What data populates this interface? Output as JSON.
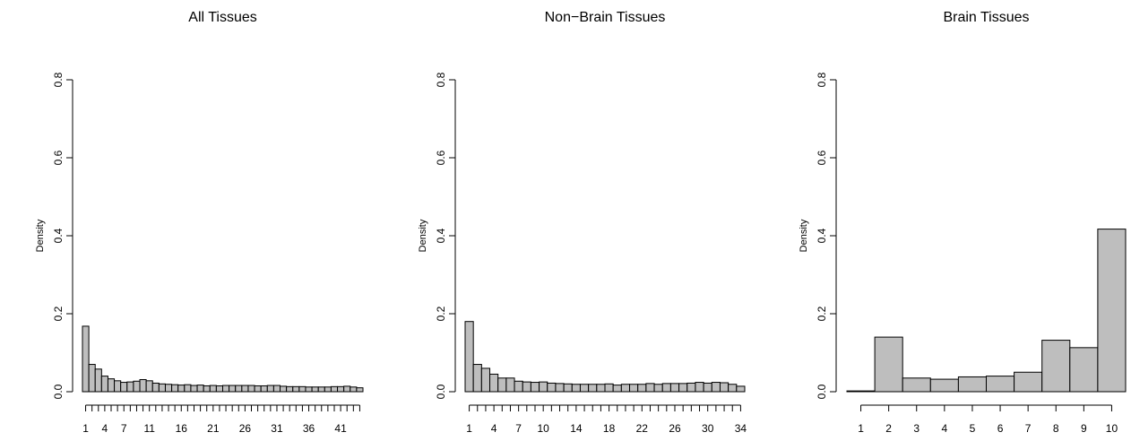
{
  "chart_data": [
    {
      "type": "bar",
      "title": "All Tissues",
      "ylabel": "Density",
      "color": "#bebebe",
      "categories": [
        1,
        null,
        null,
        4,
        null,
        null,
        7,
        null,
        null,
        null,
        11,
        null,
        null,
        null,
        null,
        16,
        null,
        null,
        null,
        null,
        21,
        null,
        null,
        null,
        null,
        26,
        null,
        null,
        null,
        null,
        31,
        null,
        null,
        null,
        null,
        36,
        null,
        null,
        null,
        null,
        41,
        null,
        null,
        null
      ],
      "values": [
        0.168,
        0.07,
        0.058,
        0.04,
        0.033,
        0.028,
        0.024,
        0.025,
        0.027,
        0.031,
        0.028,
        0.022,
        0.02,
        0.019,
        0.018,
        0.017,
        0.018,
        0.016,
        0.017,
        0.015,
        0.016,
        0.015,
        0.016,
        0.016,
        0.016,
        0.016,
        0.016,
        0.015,
        0.015,
        0.016,
        0.016,
        0.014,
        0.013,
        0.013,
        0.013,
        0.012,
        0.012,
        0.012,
        0.012,
        0.013,
        0.013,
        0.014,
        0.012,
        0.01
      ],
      "ylim": [
        0,
        0.8
      ],
      "yticks": [
        {
          "value": 0,
          "label": "0.0"
        },
        {
          "value": 0.2,
          "label": "0.2"
        },
        {
          "value": 0.4,
          "label": "0.4"
        },
        {
          "value": 0.6,
          "label": "0.6"
        },
        {
          "value": 0.8,
          "label": "0.8"
        }
      ]
    },
    {
      "type": "bar",
      "title": "Non−Brain Tissues",
      "ylabel": "Density",
      "color": "#bebebe",
      "categories": [
        1,
        null,
        null,
        4,
        null,
        null,
        7,
        null,
        null,
        10,
        null,
        null,
        null,
        14,
        null,
        null,
        null,
        18,
        null,
        null,
        null,
        22,
        null,
        null,
        null,
        26,
        null,
        null,
        null,
        30,
        null,
        null,
        null,
        34
      ],
      "values": [
        0.18,
        0.07,
        0.06,
        0.045,
        0.035,
        0.035,
        0.027,
        0.025,
        0.024,
        0.025,
        0.022,
        0.021,
        0.02,
        0.019,
        0.019,
        0.019,
        0.019,
        0.02,
        0.017,
        0.019,
        0.019,
        0.019,
        0.021,
        0.019,
        0.021,
        0.021,
        0.021,
        0.022,
        0.024,
        0.022,
        0.024,
        0.023,
        0.019,
        0.014
      ],
      "ylim": [
        0,
        0.8
      ],
      "yticks": [
        {
          "value": 0,
          "label": "0.0"
        },
        {
          "value": 0.2,
          "label": "0.2"
        },
        {
          "value": 0.4,
          "label": "0.4"
        },
        {
          "value": 0.6,
          "label": "0.6"
        },
        {
          "value": 0.8,
          "label": "0.8"
        }
      ]
    },
    {
      "type": "bar",
      "title": "Brain Tissues",
      "ylabel": "Density",
      "color": "#bebebe",
      "categories": [
        1,
        2,
        3,
        4,
        5,
        6,
        7,
        8,
        9,
        10
      ],
      "values": [
        0.002,
        0.14,
        0.035,
        0.032,
        0.038,
        0.04,
        0.05,
        0.132,
        0.113,
        0.417
      ],
      "ylim": [
        0,
        0.8
      ],
      "yticks": [
        {
          "value": 0,
          "label": "0.0"
        },
        {
          "value": 0.2,
          "label": "0.2"
        },
        {
          "value": 0.4,
          "label": "0.4"
        },
        {
          "value": 0.6,
          "label": "0.6"
        },
        {
          "value": 0.8,
          "label": "0.8"
        }
      ]
    }
  ]
}
